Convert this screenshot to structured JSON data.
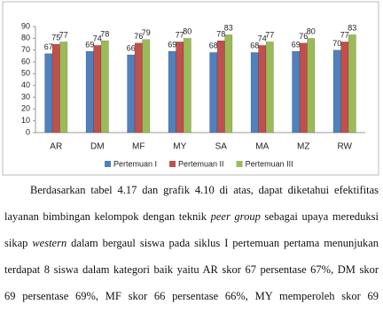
{
  "chart_data": {
    "type": "bar",
    "categories": [
      "AR",
      "DM",
      "MF",
      "MY",
      "SA",
      "MA",
      "MZ",
      "RW"
    ],
    "series": [
      {
        "name": "Pertemuan I",
        "color": "#4f81bd",
        "values": [
          67,
          69,
          66,
          69,
          68,
          68,
          69,
          70
        ]
      },
      {
        "name": "Pertemuan II",
        "color": "#c0504d",
        "values": [
          75,
          74,
          76,
          77,
          78,
          74,
          76,
          77
        ]
      },
      {
        "name": "Pertemuan III",
        "color": "#9bbb59",
        "values": [
          77,
          78,
          79,
          80,
          83,
          77,
          80,
          83
        ]
      }
    ],
    "ylim": [
      0,
      90
    ],
    "yticks": [
      0,
      10,
      20,
      30,
      40,
      50,
      60,
      70,
      80,
      90
    ],
    "grid": false,
    "legend": "bottom"
  },
  "paragraph": [
    [
      "Berdasarkan tabel 4.17 dan grafik 4.10 di atas, dapat diketahui efektifitas"
    ],
    [
      "layanan bimbingan kelompok dengan teknik ",
      {
        "text": "peer group",
        "italic": true
      },
      " sebagai upaya mereduksi"
    ],
    [
      "sikap ",
      {
        "text": "western",
        "italic": true
      },
      " dalam bergaul siswa pada siklus I pertemuan pertama menunjukan"
    ],
    [
      "terdapat 8 siswa dalam kategori baik  yaitu AR skor 67 persentase 67%, DM skor"
    ],
    [
      "69 persentase 69%, MF skor 66 persentase 66%, MY memperoleh skor 69"
    ]
  ]
}
